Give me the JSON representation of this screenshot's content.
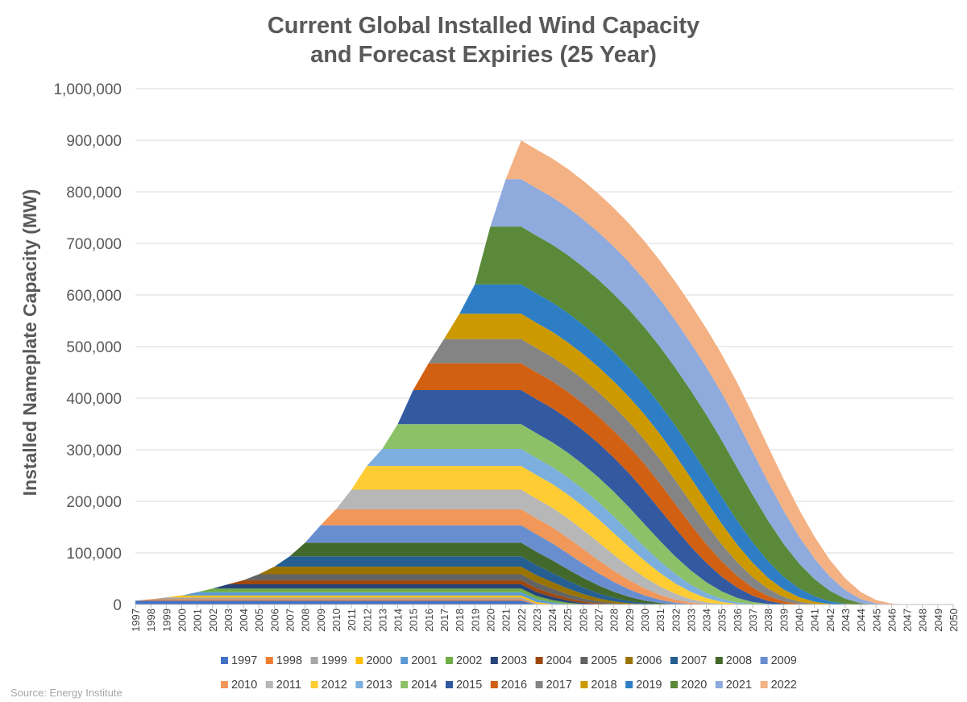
{
  "chart_data": {
    "type": "area",
    "stacked": true,
    "title_lines": [
      "Current Global Installed Wind Capacity",
      "and Forecast Expiries (25 Year)"
    ],
    "xlabel": "",
    "ylabel": "Installed Nameplate Capacity (MW)",
    "ylim": [
      0,
      1000000
    ],
    "yticks": [
      "0",
      "100,000",
      "200,000",
      "300,000",
      "400,000",
      "500,000",
      "600,000",
      "700,000",
      "800,000",
      "900,000",
      "1,000,000"
    ],
    "x_start": 1997,
    "x_end": 2050,
    "x": [
      "1997",
      "1998",
      "1999",
      "2000",
      "2001",
      "2002",
      "2003",
      "2004",
      "2005",
      "2006",
      "2007",
      "2008",
      "2009",
      "2010",
      "2011",
      "2012",
      "2013",
      "2014",
      "2015",
      "2016",
      "2017",
      "2018",
      "2019",
      "2020",
      "2021",
      "2022",
      "2023",
      "2024",
      "2025",
      "2026",
      "2027",
      "2028",
      "2029",
      "2030",
      "2031",
      "2032",
      "2033",
      "2034",
      "2035",
      "2036",
      "2037",
      "2038",
      "2039",
      "2040",
      "2041",
      "2042",
      "2043",
      "2044",
      "2045",
      "2046",
      "2047",
      "2048",
      "2049",
      "2050"
    ],
    "grid": true,
    "legend_position": "bottom",
    "series": [
      {
        "name": "1997",
        "color": "#4472c4",
        "install": 7500
      },
      {
        "name": "1998",
        "color": "#ed7d31",
        "install": 2500
      },
      {
        "name": "1999",
        "color": "#a5a5a5",
        "install": 3600
      },
      {
        "name": "2000",
        "color": "#ffc000",
        "install": 3800
      },
      {
        "name": "2001",
        "color": "#5b9bd5",
        "install": 6500
      },
      {
        "name": "2002",
        "color": "#70ad47",
        "install": 7000
      },
      {
        "name": "2003",
        "color": "#264478",
        "install": 8200
      },
      {
        "name": "2004",
        "color": "#9e480e",
        "install": 8000
      },
      {
        "name": "2005",
        "color": "#636363",
        "install": 11500
      },
      {
        "name": "2006",
        "color": "#997300",
        "install": 14700
      },
      {
        "name": "2007",
        "color": "#255e91",
        "install": 20000
      },
      {
        "name": "2008",
        "color": "#43682b",
        "install": 26500
      },
      {
        "name": "2009",
        "color": "#698ed0",
        "install": 33800
      },
      {
        "name": "2010",
        "color": "#f1975a",
        "install": 31000
      },
      {
        "name": "2011",
        "color": "#b7b7b7",
        "install": 38000
      },
      {
        "name": "2012",
        "color": "#ffcd33",
        "install": 46000
      },
      {
        "name": "2013",
        "color": "#7cafdd",
        "install": 33000
      },
      {
        "name": "2014",
        "color": "#8cc168",
        "install": 48000
      },
      {
        "name": "2015",
        "color": "#335aa1",
        "install": 66000
      },
      {
        "name": "2016",
        "color": "#d26012",
        "install": 52000
      },
      {
        "name": "2017",
        "color": "#848484",
        "install": 47000
      },
      {
        "name": "2018",
        "color": "#cc9a00",
        "install": 49000
      },
      {
        "name": "2019",
        "color": "#2e7ec6",
        "install": 57000
      },
      {
        "name": "2020",
        "color": "#5a8a39",
        "install": 112000
      },
      {
        "name": "2021",
        "color": "#8faadc",
        "install": 92000
      },
      {
        "name": "2022",
        "color": "#f4b183",
        "install": 75000
      }
    ]
  },
  "source_note": "Source: Energy Institute"
}
